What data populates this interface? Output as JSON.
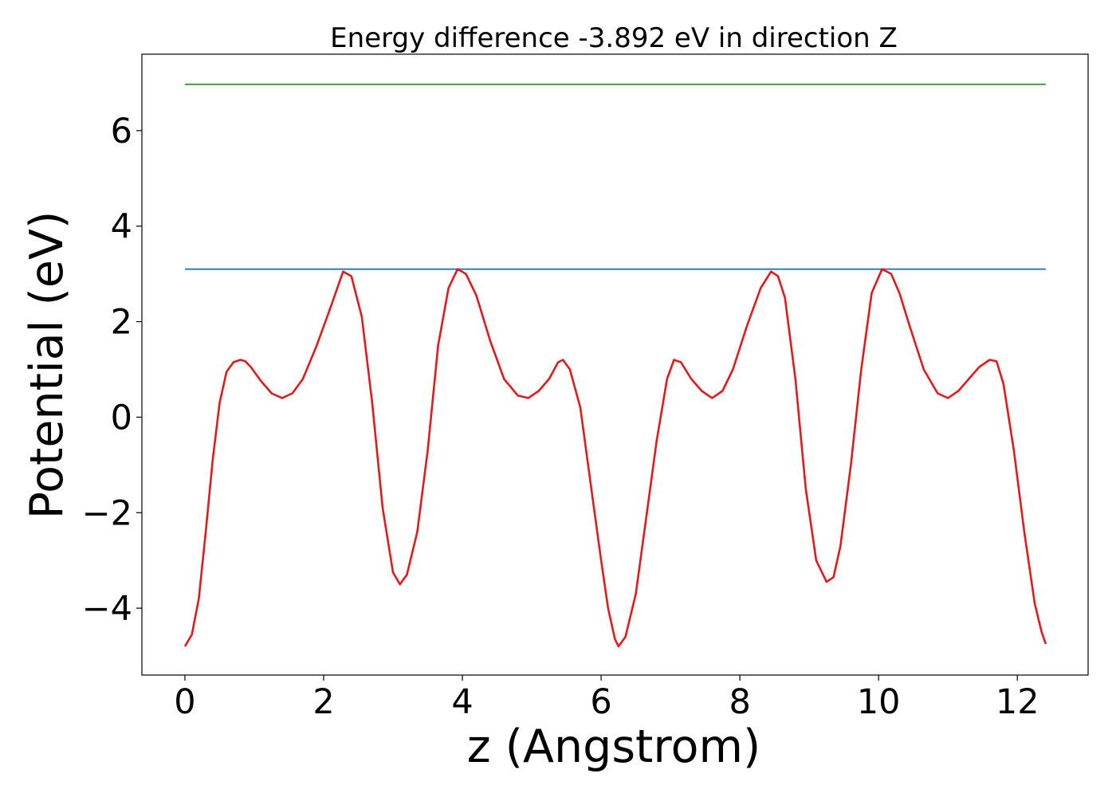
{
  "chart_data": {
    "type": "line",
    "title": "Energy difference -3.892 eV in direction Z",
    "xlabel": "z (Angstrom)",
    "ylabel": "Potential (eV)",
    "xlim": [
      -0.62,
      13.02
    ],
    "ylim": [
      -5.4,
      7.6
    ],
    "xticks": [
      0,
      2,
      4,
      6,
      8,
      10,
      12
    ],
    "xtick_labels": [
      "0",
      "2",
      "4",
      "6",
      "8",
      "10",
      "12"
    ],
    "yticks": [
      -4,
      -2,
      0,
      2,
      4,
      6
    ],
    "ytick_labels": [
      "−4",
      "−2",
      "0",
      "2",
      "4",
      "6"
    ],
    "grid": false,
    "series": [
      {
        "color": "#2ca02c",
        "x": [
          0,
          12.41
        ],
        "y": [
          6.97,
          6.97
        ]
      },
      {
        "color": "#1f77b4",
        "x": [
          0,
          12.41
        ],
        "y": [
          3.1,
          3.1
        ]
      },
      {
        "color": "#e31a1c",
        "x": [
          0.0,
          0.1,
          0.2,
          0.3,
          0.4,
          0.5,
          0.6,
          0.7,
          0.8,
          0.87,
          0.95,
          1.1,
          1.25,
          1.4,
          1.55,
          1.7,
          1.9,
          2.1,
          2.28,
          2.4,
          2.55,
          2.7,
          2.85,
          3.0,
          3.1,
          3.2,
          3.35,
          3.5,
          3.65,
          3.8,
          3.93,
          4.05,
          4.2,
          4.4,
          4.6,
          4.8,
          4.95,
          5.1,
          5.25,
          5.38,
          5.45,
          5.55,
          5.7,
          5.85,
          6.0,
          6.1,
          6.2,
          6.25,
          6.35,
          6.5,
          6.65,
          6.8,
          6.95,
          7.05,
          7.15,
          7.3,
          7.45,
          7.6,
          7.75,
          7.9,
          8.1,
          8.3,
          8.45,
          8.55,
          8.65,
          8.8,
          8.95,
          9.1,
          9.25,
          9.35,
          9.45,
          9.6,
          9.75,
          9.9,
          10.05,
          10.18,
          10.3,
          10.45,
          10.65,
          10.85,
          11.0,
          11.15,
          11.3,
          11.45,
          11.6,
          11.7,
          11.8,
          11.95,
          12.1,
          12.25,
          12.35,
          12.41
        ],
        "y": [
          -4.8,
          -4.55,
          -3.8,
          -2.4,
          -0.9,
          0.3,
          0.95,
          1.15,
          1.2,
          1.17,
          1.05,
          0.75,
          0.5,
          0.4,
          0.5,
          0.8,
          1.5,
          2.3,
          3.05,
          2.95,
          2.1,
          0.3,
          -1.9,
          -3.25,
          -3.5,
          -3.3,
          -2.4,
          -0.7,
          1.5,
          2.7,
          3.1,
          3.0,
          2.55,
          1.6,
          0.8,
          0.45,
          0.4,
          0.55,
          0.8,
          1.15,
          1.2,
          1.0,
          0.2,
          -1.4,
          -3.0,
          -4.0,
          -4.65,
          -4.8,
          -4.6,
          -3.7,
          -2.1,
          -0.5,
          0.8,
          1.2,
          1.15,
          0.8,
          0.55,
          0.4,
          0.55,
          1.0,
          1.9,
          2.7,
          3.05,
          2.95,
          2.5,
          0.8,
          -1.5,
          -3.0,
          -3.45,
          -3.35,
          -2.7,
          -1.0,
          1.0,
          2.6,
          3.1,
          3.0,
          2.6,
          1.9,
          1.0,
          0.5,
          0.4,
          0.55,
          0.8,
          1.05,
          1.2,
          1.17,
          0.7,
          -0.7,
          -2.4,
          -3.9,
          -4.5,
          -4.75
        ]
      }
    ]
  }
}
